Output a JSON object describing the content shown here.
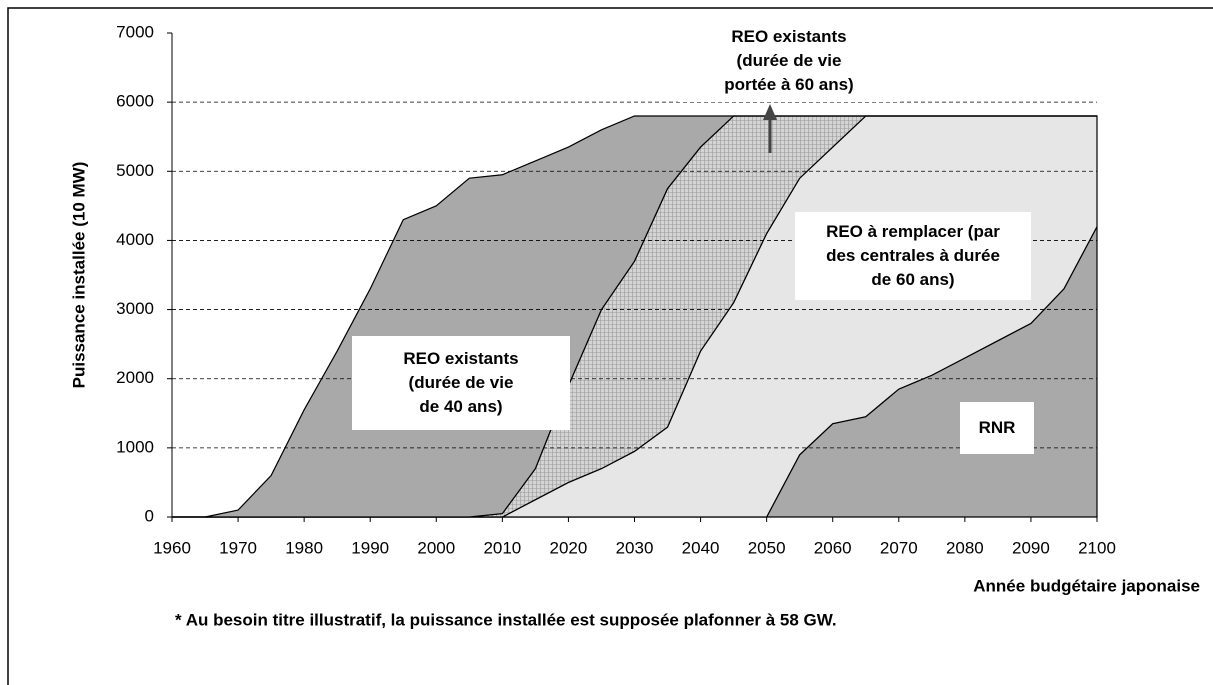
{
  "chart_data": {
    "type": "area",
    "ylabel": "Puissance installée (10 MW)",
    "xlabel": "Année budgétaire japonaise",
    "footnote": "* Au besoin titre illustratif, la puissance installée est supposée plafonner à 58 GW.",
    "x": [
      1960,
      1965,
      1970,
      1975,
      1980,
      1985,
      1990,
      1995,
      2000,
      2005,
      2010,
      2015,
      2020,
      2025,
      2030,
      2035,
      2040,
      2045,
      2050,
      2055,
      2060,
      2065,
      2070,
      2075,
      2080,
      2085,
      2090,
      2095,
      2100
    ],
    "series": [
      {
        "name": "RNR",
        "color": "#a9a9a9",
        "values": [
          0,
          0,
          0,
          0,
          0,
          0,
          0,
          0,
          0,
          0,
          0,
          0,
          0,
          0,
          0,
          0,
          0,
          0,
          0,
          900,
          1350,
          1450,
          1850,
          2050,
          2300,
          2550,
          2800,
          3300,
          4200
        ]
      },
      {
        "name": "REO à remplacer (par\ndes centrales à durée\nde 60 ans)",
        "color": "#e6e6e6",
        "values": [
          0,
          0,
          0,
          0,
          0,
          0,
          0,
          0,
          0,
          0,
          0,
          250,
          500,
          700,
          950,
          1300,
          2400,
          3100,
          4100,
          4000,
          4000,
          4350,
          3950,
          3750,
          3500,
          3250,
          3000,
          2500,
          1600
        ]
      },
      {
        "name": "REO existants\n(durée de vie\nportée à 60 ans)",
        "color": "#c8c8c8",
        "pattern": "hatch",
        "values": [
          0,
          0,
          0,
          0,
          0,
          0,
          0,
          0,
          0,
          0,
          50,
          450,
          1400,
          2300,
          2750,
          3450,
          2950,
          2700,
          1700,
          900,
          450,
          0,
          0,
          0,
          0,
          0,
          0,
          0,
          0
        ]
      },
      {
        "name": "REO existants\n(durée de vie\nde 40 ans)",
        "color": "#a9a9a9",
        "values": [
          0,
          0,
          100,
          600,
          1550,
          2400,
          3300,
          4300,
          4500,
          4900,
          4900,
          4450,
          3450,
          2600,
          2100,
          1050,
          450,
          0,
          0,
          0,
          0,
          0,
          0,
          0,
          0,
          0,
          0,
          0,
          0
        ]
      }
    ],
    "stacked": true,
    "xlim": [
      1960,
      2100
    ],
    "xticks": [
      1960,
      1970,
      1980,
      1990,
      2000,
      2010,
      2020,
      2030,
      2040,
      2050,
      2060,
      2070,
      2080,
      2090,
      2100
    ],
    "ylim": [
      0,
      7000
    ],
    "yticks": [
      0,
      1000,
      2000,
      3000,
      4000,
      5000,
      6000,
      7000
    ],
    "grid": true
  }
}
